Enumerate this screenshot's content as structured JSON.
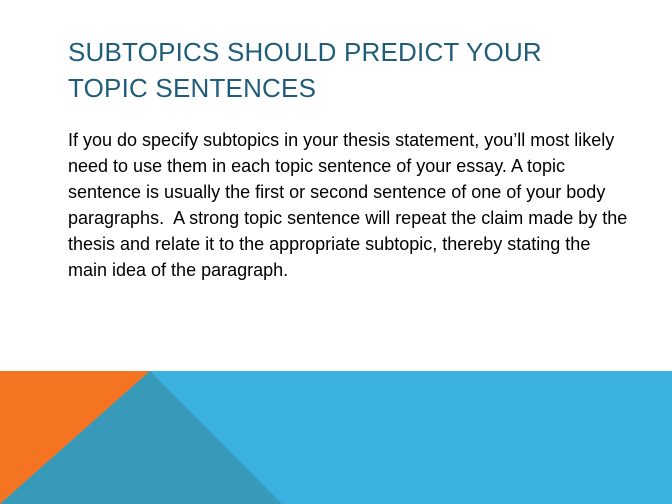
{
  "slide": {
    "title": "Subtopics should predict your topic sentences",
    "body": "If you do specify subtopics in your thesis statement, you’ll most likely need to use them in each topic sentence of your essay. A topic sentence is usually the first or second sentence of one of your body paragraphs.  A strong topic sentence will repeat the claim made by the thesis and relate it to the appropriate subtopic, thereby stating the main idea of the paragraph."
  },
  "theme": {
    "title_color": "#1f5d78",
    "band_color": "#3ab1de",
    "orange_color": "#f47421",
    "shadow_color": "#3999b9"
  }
}
